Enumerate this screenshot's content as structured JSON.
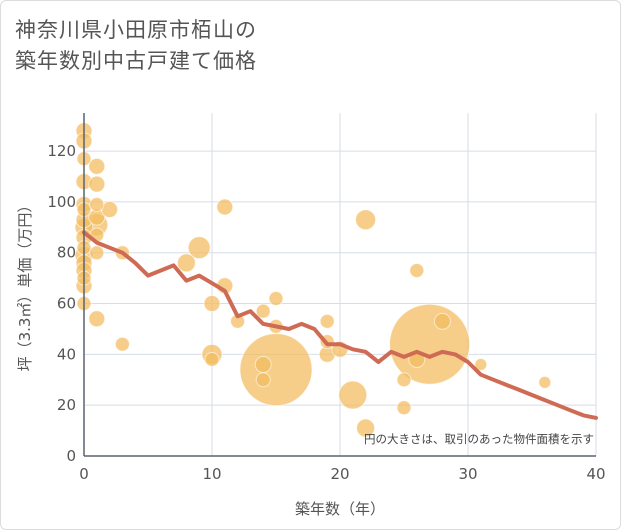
{
  "title_lines": [
    "神奈川県小田原市栢山の",
    "築年数別中古戸建て価格"
  ],
  "colors": {
    "bubble": "#f3bc62",
    "line": "#cf6b55",
    "grid": "#d6dde6",
    "axis": "#5a6370"
  },
  "chart_data": {
    "type": "scatter",
    "xlabel": "築年数（年）",
    "ylabel": "坪（3.3㎡）単価（万円）",
    "xlim": [
      0,
      40
    ],
    "ylim": [
      0,
      135
    ],
    "xticks": [
      0,
      10,
      20,
      30,
      40
    ],
    "yticks": [
      0,
      20,
      40,
      60,
      80,
      100,
      120
    ],
    "grid": true,
    "note": "円の大きさは、取引のあった物件面積を示す",
    "points": [
      {
        "x": 0,
        "y": 128,
        "r": 8
      },
      {
        "x": 0,
        "y": 124,
        "r": 8
      },
      {
        "x": 0,
        "y": 117,
        "r": 7
      },
      {
        "x": 0,
        "y": 108,
        "r": 8
      },
      {
        "x": 0,
        "y": 99,
        "r": 8
      },
      {
        "x": 0,
        "y": 97,
        "r": 7
      },
      {
        "x": 0,
        "y": 93,
        "r": 8
      },
      {
        "x": 0,
        "y": 90,
        "r": 9
      },
      {
        "x": 0,
        "y": 86,
        "r": 8
      },
      {
        "x": 0,
        "y": 82,
        "r": 7
      },
      {
        "x": 0,
        "y": 79,
        "r": 9
      },
      {
        "x": 0,
        "y": 76,
        "r": 8
      },
      {
        "x": 0,
        "y": 73,
        "r": 8
      },
      {
        "x": 0,
        "y": 70,
        "r": 7
      },
      {
        "x": 0,
        "y": 67,
        "r": 8
      },
      {
        "x": 0,
        "y": 60,
        "r": 7
      },
      {
        "x": 1,
        "y": 114,
        "r": 8
      },
      {
        "x": 1,
        "y": 107,
        "r": 8
      },
      {
        "x": 1,
        "y": 99,
        "r": 7
      },
      {
        "x": 1,
        "y": 94,
        "r": 8
      },
      {
        "x": 1,
        "y": 91,
        "r": 11
      },
      {
        "x": 1,
        "y": 87,
        "r": 7
      },
      {
        "x": 1,
        "y": 80,
        "r": 7
      },
      {
        "x": 1,
        "y": 54,
        "r": 8
      },
      {
        "x": 2,
        "y": 97,
        "r": 8
      },
      {
        "x": 3,
        "y": 80,
        "r": 7
      },
      {
        "x": 3,
        "y": 44,
        "r": 7
      },
      {
        "x": 8,
        "y": 76,
        "r": 9
      },
      {
        "x": 9,
        "y": 82,
        "r": 11
      },
      {
        "x": 10,
        "y": 60,
        "r": 8
      },
      {
        "x": 10,
        "y": 40,
        "r": 10
      },
      {
        "x": 10,
        "y": 38,
        "r": 7
      },
      {
        "x": 11,
        "y": 98,
        "r": 8
      },
      {
        "x": 11,
        "y": 67,
        "r": 8
      },
      {
        "x": 12,
        "y": 53,
        "r": 7
      },
      {
        "x": 14,
        "y": 57,
        "r": 7
      },
      {
        "x": 14,
        "y": 36,
        "r": 8
      },
      {
        "x": 14,
        "y": 30,
        "r": 7
      },
      {
        "x": 15,
        "y": 62,
        "r": 7
      },
      {
        "x": 15,
        "y": 51,
        "r": 7
      },
      {
        "x": 15,
        "y": 34,
        "r": 36
      },
      {
        "x": 19,
        "y": 53,
        "r": 7
      },
      {
        "x": 19,
        "y": 45,
        "r": 7
      },
      {
        "x": 19,
        "y": 40,
        "r": 8
      },
      {
        "x": 20,
        "y": 42,
        "r": 8
      },
      {
        "x": 21,
        "y": 24,
        "r": 14
      },
      {
        "x": 22,
        "y": 93,
        "r": 10
      },
      {
        "x": 22,
        "y": 11,
        "r": 9
      },
      {
        "x": 25,
        "y": 30,
        "r": 7
      },
      {
        "x": 25,
        "y": 19,
        "r": 7
      },
      {
        "x": 26,
        "y": 73,
        "r": 7
      },
      {
        "x": 26,
        "y": 38,
        "r": 8
      },
      {
        "x": 27,
        "y": 44,
        "r": 40
      },
      {
        "x": 28,
        "y": 53,
        "r": 8
      },
      {
        "x": 31,
        "y": 36,
        "r": 6
      },
      {
        "x": 36,
        "y": 29,
        "r": 6
      }
    ],
    "trend": {
      "x": [
        0,
        1,
        2,
        3,
        4,
        5,
        6,
        7,
        8,
        9,
        10,
        11,
        12,
        13,
        14,
        15,
        16,
        17,
        18,
        19,
        20,
        21,
        22,
        23,
        24,
        25,
        26,
        27,
        28,
        29,
        30,
        31,
        32,
        33,
        34,
        35,
        36,
        37,
        38,
        39,
        40
      ],
      "y": [
        88,
        84,
        82,
        80,
        76,
        71,
        73,
        75,
        69,
        71,
        68,
        65,
        55,
        57,
        52,
        51,
        50,
        52,
        50,
        44,
        44,
        42,
        41,
        37,
        41,
        39,
        41,
        39,
        41,
        40,
        37,
        32,
        30,
        28,
        26,
        24,
        22,
        20,
        18,
        16,
        15
      ]
    }
  }
}
